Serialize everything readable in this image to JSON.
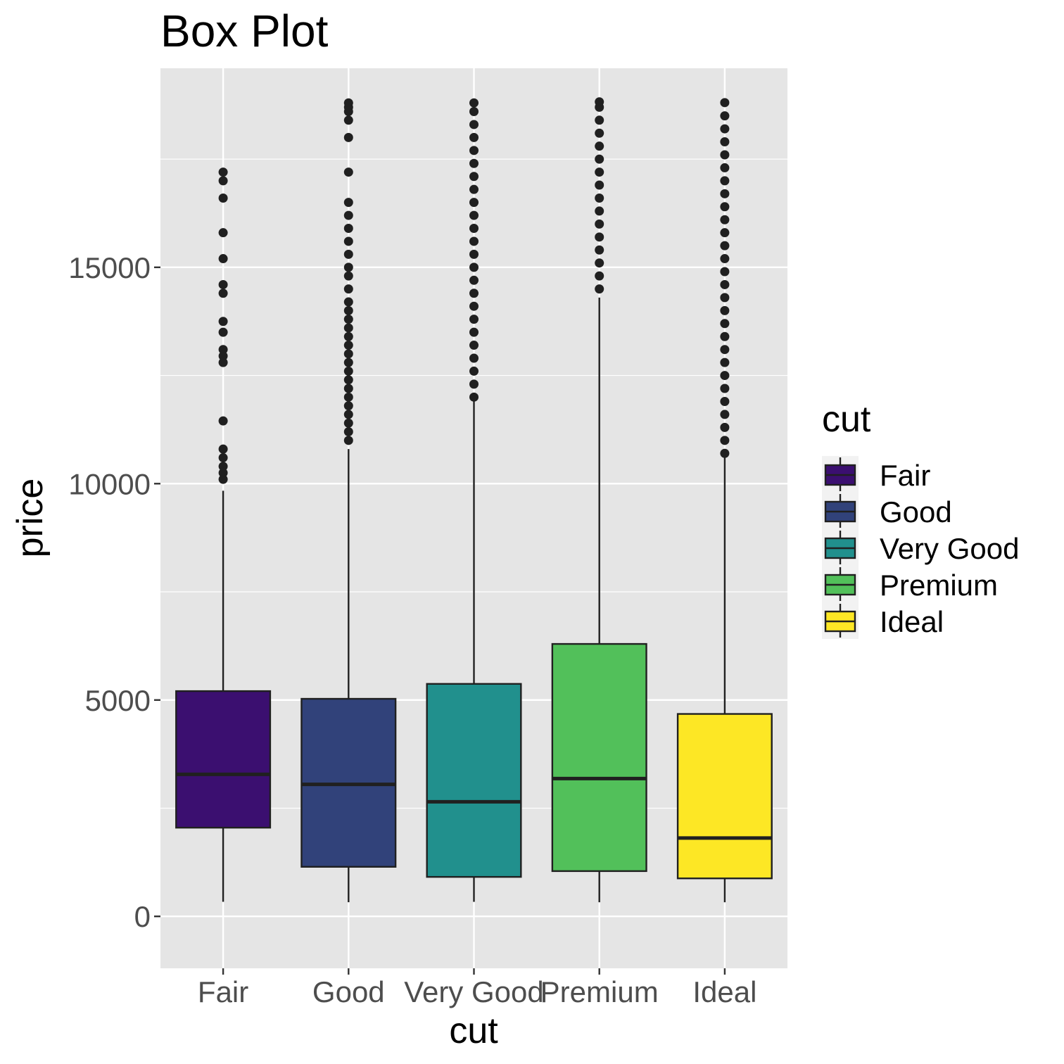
{
  "chart_data": {
    "type": "box",
    "title": "Box Plot",
    "xlabel": "cut",
    "ylabel": "price",
    "ylim": [
      -1200,
      19600
    ],
    "y_ticks": [
      0,
      5000,
      10000,
      15000
    ],
    "y_tick_labels": [
      "0",
      "5000",
      "10000",
      "15000"
    ],
    "grid": true,
    "legend": {
      "title": "cut",
      "position": "right"
    },
    "categories": [
      "Fair",
      "Good",
      "Very Good",
      "Premium",
      "Ideal"
    ],
    "series": [
      {
        "name": "Fair",
        "color": "#3b0f70",
        "stats": {
          "min": 337,
          "q1": 2050,
          "median": 3282,
          "q3": 5206,
          "max": 9836
        },
        "outliers": [
          10100,
          10250,
          10400,
          10600,
          10800,
          11450,
          12800,
          12950,
          13100,
          13500,
          13750,
          14400,
          14600,
          15200,
          15800,
          16600,
          17000,
          17200
        ]
      },
      {
        "name": "Good",
        "color": "#31427a",
        "stats": {
          "min": 327,
          "q1": 1145,
          "median": 3050,
          "q3": 5028,
          "max": 10800
        },
        "outliers": [
          11000,
          11200,
          11400,
          11600,
          11800,
          12000,
          12200,
          12400,
          12600,
          12800,
          13000,
          13200,
          13400,
          13600,
          13800,
          14000,
          14200,
          14500,
          14800,
          15000,
          15300,
          15600,
          15900,
          16200,
          16500,
          17200,
          18000,
          18400,
          18600,
          18700,
          18800
        ]
      },
      {
        "name": "Very Good",
        "color": "#21908d",
        "stats": {
          "min": 336,
          "q1": 912,
          "median": 2648,
          "q3": 5373,
          "max": 12000
        },
        "outliers": [
          12000,
          12300,
          12600,
          12900,
          13200,
          13500,
          13800,
          14100,
          14400,
          14700,
          15000,
          15300,
          15600,
          15900,
          16200,
          16500,
          16800,
          17100,
          17400,
          17700,
          18000,
          18300,
          18600,
          18800
        ]
      },
      {
        "name": "Premium",
        "color": "#52c05a",
        "stats": {
          "min": 326,
          "q1": 1046,
          "median": 3185,
          "q3": 6296,
          "max": 14300
        },
        "outliers": [
          14500,
          14800,
          15100,
          15400,
          15700,
          16000,
          16300,
          16600,
          16900,
          17200,
          17500,
          17800,
          18100,
          18400,
          18700,
          18823
        ]
      },
      {
        "name": "Ideal",
        "color": "#fde725",
        "stats": {
          "min": 326,
          "q1": 878,
          "median": 1810,
          "q3": 4678,
          "max": 10600
        },
        "outliers": [
          10700,
          11000,
          11300,
          11600,
          11900,
          12200,
          12500,
          12800,
          13100,
          13400,
          13700,
          14000,
          14300,
          14600,
          14900,
          15200,
          15500,
          15800,
          16100,
          16400,
          16700,
          17000,
          17300,
          17600,
          17900,
          18200,
          18500,
          18806
        ]
      }
    ]
  }
}
